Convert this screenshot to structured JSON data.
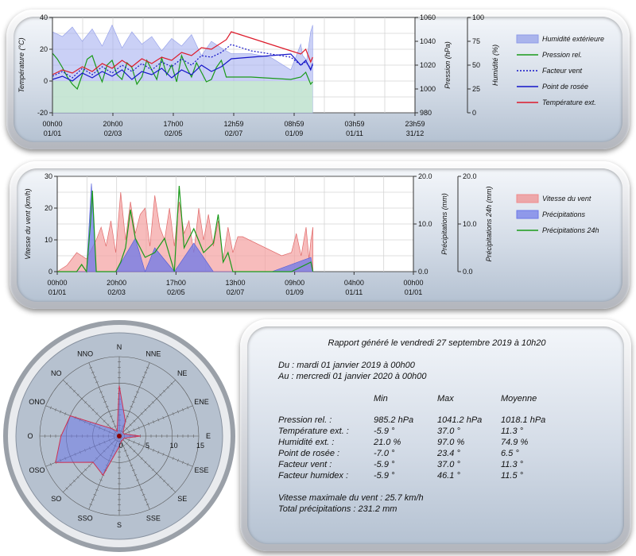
{
  "chart_data": [
    {
      "type": "line",
      "title": "",
      "x_tick_labels": [
        {
          "time": "00h00",
          "date": "01/01"
        },
        {
          "time": "20h00",
          "date": "02/03"
        },
        {
          "time": "17h00",
          "date": "02/05"
        },
        {
          "time": "12h59",
          "date": "02/07"
        },
        {
          "time": "08h59",
          "date": "01/09"
        },
        {
          "time": "03h59",
          "date": "01/11"
        },
        {
          "time": "23h59",
          "date": "31/12"
        }
      ],
      "y_left": {
        "label": "Température (°C)",
        "ticks": [
          "40",
          "20",
          "0",
          "-20"
        ],
        "range": [
          -20,
          40
        ]
      },
      "y_right1": {
        "label": "Pression (hPa)",
        "ticks": [
          "1060",
          "1040",
          "1020",
          "1000",
          "980"
        ],
        "range": [
          980,
          1060
        ]
      },
      "y_right2": {
        "label": "Humidité (%)",
        "ticks": [
          "100",
          "75",
          "50",
          "25",
          "0"
        ],
        "range": [
          0,
          100
        ]
      },
      "legend": [
        {
          "name": "Humidité extérieure",
          "style": "area",
          "color": "#8f9be8"
        },
        {
          "name": "Pression rel.",
          "style": "line",
          "color": "#1a9a1a"
        },
        {
          "name": "Facteur vent",
          "style": "dotted",
          "color": "#1515c8"
        },
        {
          "name": "Point de rosée",
          "style": "line",
          "color": "#1515c8"
        },
        {
          "name": "Température ext.",
          "style": "line",
          "color": "#dd1a2a"
        }
      ],
      "series": [
        {
          "name": "Humidité extérieure",
          "axis": "humidity",
          "x": [
            0,
            10,
            20,
            30,
            40,
            50,
            60,
            70,
            80,
            90,
            100,
            110,
            120,
            130,
            140,
            150,
            160,
            170,
            180,
            200,
            220,
            240,
            250,
            252,
            256,
            260,
            262
          ],
          "values": [
            85,
            80,
            90,
            75,
            88,
            70,
            92,
            68,
            85,
            72,
            80,
            65,
            78,
            70,
            82,
            60,
            75,
            68,
            62,
            62,
            58,
            45,
            72,
            60,
            55,
            85,
            92
          ]
        },
        {
          "name": "Pression rel.",
          "axis": "pressure",
          "x": [
            0,
            5,
            10,
            15,
            20,
            25,
            30,
            35,
            40,
            45,
            50,
            55,
            60,
            65,
            70,
            75,
            80,
            85,
            90,
            95,
            100,
            105,
            110,
            115,
            120,
            125,
            130,
            135,
            140,
            145,
            150,
            155,
            160,
            165,
            170,
            175,
            180,
            200,
            220,
            240,
            250,
            255,
            260,
            262
          ],
          "values": [
            1030,
            1025,
            1018,
            1010,
            1004,
            1000,
            1012,
            1025,
            1028,
            1016,
            1006,
            1020,
            1024,
            1012,
            1008,
            1022,
            1018,
            1004,
            1010,
            1024,
            1016,
            1008,
            1026,
            1012,
            1020,
            1006,
            1028,
            1018,
            1010,
            1022,
            1014,
            1006,
            1008,
            1018,
            1024,
            1010,
            1010,
            1010,
            1009,
            1008,
            1010,
            1014,
            1004,
            1006
          ]
        },
        {
          "name": "Facteur vent",
          "axis": "temperature",
          "x": [
            0,
            10,
            20,
            30,
            40,
            50,
            60,
            70,
            80,
            90,
            100,
            110,
            120,
            130,
            140,
            150,
            160,
            170,
            180,
            200,
            220,
            240,
            250,
            255,
            260,
            262
          ],
          "values": [
            3,
            6,
            2,
            8,
            4,
            9,
            5,
            10,
            6,
            11,
            7,
            12,
            9,
            14,
            10,
            16,
            15,
            18,
            23,
            19,
            17,
            15,
            10,
            12,
            8,
            10
          ]
        },
        {
          "name": "Point de rosée",
          "axis": "temperature",
          "x": [
            0,
            10,
            20,
            30,
            40,
            50,
            60,
            70,
            80,
            90,
            100,
            110,
            120,
            130,
            140,
            150,
            160,
            170,
            180,
            200,
            220,
            240,
            250,
            255,
            260,
            262
          ],
          "values": [
            1,
            3,
            0,
            5,
            2,
            6,
            3,
            7,
            1,
            6,
            4,
            8,
            2,
            7,
            4,
            10,
            6,
            9,
            14,
            15,
            16,
            17,
            10,
            13,
            7,
            11
          ]
        },
        {
          "name": "Température ext.",
          "axis": "temperature",
          "x": [
            0,
            10,
            20,
            30,
            40,
            50,
            60,
            70,
            80,
            90,
            100,
            110,
            120,
            130,
            140,
            150,
            160,
            170,
            175,
            180,
            200,
            220,
            240,
            250,
            255,
            260,
            262
          ],
          "values": [
            4,
            7,
            5,
            9,
            6,
            11,
            8,
            13,
            9,
            14,
            11,
            15,
            13,
            18,
            16,
            21,
            20,
            24,
            26,
            31,
            27,
            23,
            19,
            17,
            20,
            12,
            15
          ]
        }
      ]
    },
    {
      "type": "area",
      "title": "",
      "x_tick_labels": [
        {
          "time": "00h00",
          "date": "01/01"
        },
        {
          "time": "20h00",
          "date": "02/03"
        },
        {
          "time": "17h00",
          "date": "02/05"
        },
        {
          "time": "13h00",
          "date": "02/07"
        },
        {
          "time": "09h00",
          "date": "01/09"
        },
        {
          "time": "04h00",
          "date": "01/11"
        },
        {
          "time": "00h00",
          "date": "01/01"
        }
      ],
      "y_left": {
        "label": "Vitesse du vent (km/h)",
        "ticks": [
          "30",
          "20",
          "10",
          "0"
        ],
        "range": [
          0,
          30
        ]
      },
      "y_right1": {
        "label": "Précipitations (mm)",
        "ticks": [
          "20.0",
          "10.0",
          "0.0"
        ],
        "range": [
          0,
          20
        ]
      },
      "y_right2": {
        "label": "Précipitations 24h (mm)",
        "ticks": [
          "20.0",
          "10.0",
          "0.0"
        ],
        "range": [
          0,
          20
        ]
      },
      "legend": [
        {
          "name": "Vitesse du vent",
          "style": "area",
          "color": "#f08a8a"
        },
        {
          "name": "Précipitations",
          "style": "area",
          "color": "#6c78e8"
        },
        {
          "name": "Précipitations 24h",
          "style": "line",
          "color": "#1a9a1a"
        }
      ],
      "series": [
        {
          "name": "Vitesse du vent",
          "x": [
            0,
            10,
            20,
            30,
            40,
            45,
            50,
            55,
            60,
            65,
            70,
            75,
            80,
            85,
            90,
            95,
            100,
            105,
            110,
            115,
            120,
            125,
            130,
            135,
            140,
            145,
            150,
            155,
            160,
            165,
            170,
            175,
            180,
            185,
            190,
            230,
            240,
            245,
            250,
            255,
            258,
            260,
            262
          ],
          "values": [
            0,
            2,
            6,
            4,
            10,
            14,
            8,
            16,
            6,
            25,
            10,
            22,
            12,
            18,
            20,
            8,
            24,
            14,
            10,
            20,
            8,
            22,
            12,
            16,
            6,
            20,
            10,
            18,
            8,
            16,
            4,
            14,
            6,
            11,
            11,
            5,
            6,
            12,
            5,
            14,
            4,
            10,
            14
          ]
        },
        {
          "name": "Précipitations",
          "x": [
            0,
            30,
            35,
            40,
            60,
            80,
            90,
            100,
            120,
            140,
            160,
            180,
            220,
            260,
            262
          ],
          "values": [
            0,
            0,
            18.5,
            0,
            0,
            7,
            0,
            5,
            0,
            6,
            0,
            0,
            0,
            3,
            0
          ]
        },
        {
          "name": "Précipitations 24h",
          "x": [
            0,
            20,
            25,
            30,
            34,
            36,
            40,
            60,
            65,
            70,
            75,
            80,
            90,
            100,
            110,
            120,
            125,
            130,
            140,
            150,
            160,
            165,
            170,
            175,
            180,
            200,
            240,
            260,
            262
          ],
          "values": [
            0,
            0,
            1.5,
            0,
            10,
            17,
            0,
            0,
            2,
            5,
            13,
            7,
            3,
            4,
            7,
            0,
            18,
            5,
            9,
            4,
            6,
            12,
            2,
            4,
            0,
            0,
            0,
            2,
            0
          ]
        }
      ]
    },
    {
      "type": "radar",
      "title": "",
      "directions": [
        "N",
        "NNE",
        "NE",
        "ENE",
        "E",
        "ESE",
        "SE",
        "SSE",
        "S",
        "SSO",
        "SO",
        "OSO",
        "O",
        "ONO",
        "NO",
        "NNO"
      ],
      "radial_ticks": [
        "0",
        "5",
        "10",
        "15"
      ],
      "radial_max": 15,
      "series": [
        {
          "name": "",
          "color": "#6c78e8",
          "values": [
            9.5,
            3,
            1,
            1,
            4,
            1,
            1,
            1,
            2,
            8,
            7,
            13,
            11,
            10,
            2,
            1
          ]
        }
      ]
    }
  ],
  "report": {
    "title": "Rapport généré le vendredi 27 septembre 2019 à 10h20",
    "from": "Du : mardi 01 janvier 2019 à 00h00",
    "to": "Au : mercredi 01 janvier 2020 à 00h00",
    "columns": [
      "Min",
      "Max",
      "Moyenne"
    ],
    "rows": [
      {
        "label": "Pression rel. :",
        "min": "985.2 hPa",
        "max": "1041.2 hPa",
        "avg": "1018.1 hPa"
      },
      {
        "label": "Température ext. :",
        "min": "-5.9 °",
        "max": "37.0 °",
        "avg": "11.3 °"
      },
      {
        "label": "Humidité ext. :",
        "min": "21.0 %",
        "max": "97.0 %",
        "avg": "74.9 %"
      },
      {
        "label": "Point de rosée :",
        "min": "-7.0 °",
        "max": "23.4 °",
        "avg": "6.5 °"
      },
      {
        "label": "Facteur vent :",
        "min": "-5.9 °",
        "max": "37.0 °",
        "avg": "11.3 °"
      },
      {
        "label": "Facteur humidex :",
        "min": "-5.9 °",
        "max": "46.1 °",
        "avg": "11.5 °"
      }
    ],
    "max_wind": "Vitesse maximale du vent : 25.7 km/h",
    "total_precip": "Total précipitations : 231.2 mm"
  }
}
